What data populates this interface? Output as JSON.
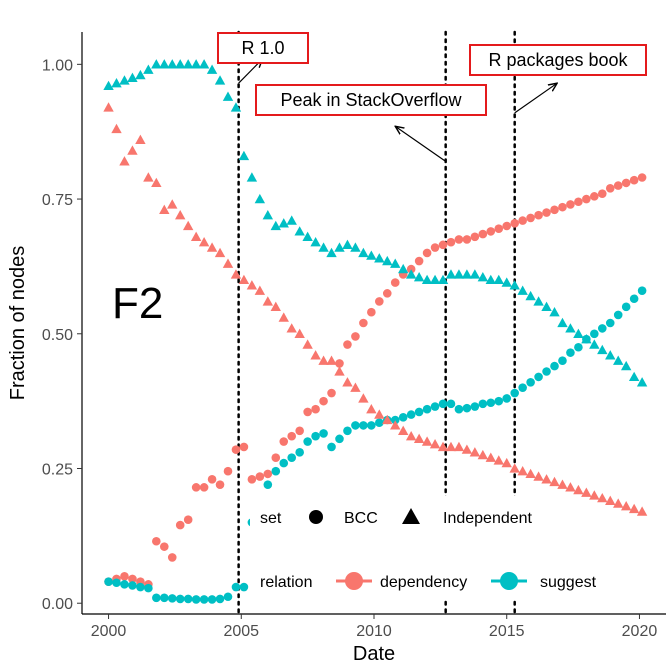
{
  "chart_data": {
    "type": "scatter",
    "panel_tag": "F2",
    "xlabel": "Date",
    "ylabel": "Fraction of nodes",
    "xlim": [
      1999,
      2021
    ],
    "ylim": [
      -0.02,
      1.06
    ],
    "x_ticks": [
      2000,
      2005,
      2010,
      2015,
      2020
    ],
    "x_tick_labels": [
      "2000",
      "2005",
      "2010",
      "2015",
      "2020"
    ],
    "y_ticks": [
      0,
      0.25,
      0.5,
      0.75,
      1.0
    ],
    "y_tick_labels": [
      "0.00",
      "0.25",
      "0.50",
      "0.75",
      "1.00"
    ],
    "grid": false,
    "colors": {
      "dependency": "#f8766d",
      "suggest": "#00bfc4",
      "annotation_box": "#e41a1c"
    },
    "legend": {
      "set_title": "set",
      "set_items": [
        {
          "label": "BCC",
          "shape": "circle"
        },
        {
          "label": "Independent",
          "shape": "triangle"
        }
      ],
      "relation_title": "relation",
      "relation_items": [
        {
          "label": "dependency",
          "color": "#f8766d"
        },
        {
          "label": "suggest",
          "color": "#00bfc4"
        }
      ],
      "placement": "bottom-center inside"
    },
    "vlines": [
      2004.9,
      2012.7,
      2015.3
    ],
    "annotations": [
      {
        "text": "R 1.0",
        "arrow_from": [
          2004.9,
          0.965
        ],
        "arrow_to": [
          2005.8,
          1.01
        ]
      },
      {
        "text": "Peak in StackOverflow",
        "arrow_from": [
          2012.7,
          0.82
        ],
        "arrow_to": [
          2010.8,
          0.885
        ]
      },
      {
        "text": "R packages book",
        "arrow_from": [
          2015.3,
          0.91
        ],
        "arrow_to": [
          2016.9,
          0.965
        ]
      }
    ],
    "series": [
      {
        "name": "BCC dependency",
        "set": "BCC",
        "relation": "dependency",
        "shape": "circle",
        "x": [
          2000.0,
          2000.3,
          2000.6,
          2000.9,
          2001.2,
          2001.5,
          2001.8,
          2002.1,
          2002.4,
          2002.7,
          2003.0,
          2003.3,
          2003.6,
          2003.9,
          2004.2,
          2004.5,
          2004.8,
          2005.1,
          2005.4,
          2005.7,
          2006.0,
          2006.3,
          2006.6,
          2006.9,
          2007.2,
          2007.5,
          2007.8,
          2008.1,
          2008.4,
          2008.7,
          2009.0,
          2009.3,
          2009.6,
          2009.9,
          2010.2,
          2010.5,
          2010.8,
          2011.1,
          2011.4,
          2011.7,
          2012.0,
          2012.3,
          2012.6,
          2012.9,
          2013.2,
          2013.5,
          2013.8,
          2014.1,
          2014.4,
          2014.7,
          2015.0,
          2015.3,
          2015.6,
          2015.9,
          2016.2,
          2016.5,
          2016.8,
          2017.1,
          2017.4,
          2017.7,
          2018.0,
          2018.3,
          2018.6,
          2018.9,
          2019.2,
          2019.5,
          2019.8,
          2020.1
        ],
        "y": [
          0.04,
          0.045,
          0.05,
          0.045,
          0.04,
          0.035,
          0.115,
          0.105,
          0.085,
          0.145,
          0.155,
          0.215,
          0.215,
          0.23,
          0.22,
          0.245,
          0.285,
          0.29,
          0.23,
          0.235,
          0.24,
          0.27,
          0.3,
          0.31,
          0.32,
          0.355,
          0.36,
          0.375,
          0.39,
          0.445,
          0.48,
          0.495,
          0.52,
          0.54,
          0.56,
          0.575,
          0.595,
          0.61,
          0.62,
          0.635,
          0.65,
          0.66,
          0.665,
          0.67,
          0.675,
          0.675,
          0.68,
          0.685,
          0.69,
          0.695,
          0.7,
          0.705,
          0.71,
          0.715,
          0.72,
          0.725,
          0.73,
          0.735,
          0.74,
          0.745,
          0.75,
          0.755,
          0.76,
          0.77,
          0.775,
          0.78,
          0.785,
          0.79
        ]
      },
      {
        "name": "BCC suggest",
        "set": "BCC",
        "relation": "suggest",
        "shape": "circle",
        "x": [
          2000.0,
          2000.3,
          2000.6,
          2000.9,
          2001.2,
          2001.5,
          2001.8,
          2002.1,
          2002.4,
          2002.7,
          2003.0,
          2003.3,
          2003.6,
          2003.9,
          2004.2,
          2004.5,
          2004.8,
          2005.1,
          2005.4,
          2005.7,
          2006.0,
          2006.3,
          2006.6,
          2006.9,
          2007.2,
          2007.5,
          2007.8,
          2008.1,
          2008.4,
          2008.7,
          2009.0,
          2009.3,
          2009.6,
          2009.9,
          2010.2,
          2010.5,
          2010.8,
          2011.1,
          2011.4,
          2011.7,
          2012.0,
          2012.3,
          2012.6,
          2012.9,
          2013.2,
          2013.5,
          2013.8,
          2014.1,
          2014.4,
          2014.7,
          2015.0,
          2015.3,
          2015.6,
          2015.9,
          2016.2,
          2016.5,
          2016.8,
          2017.1,
          2017.4,
          2017.7,
          2018.0,
          2018.3,
          2018.6,
          2018.9,
          2019.2,
          2019.5,
          2019.8,
          2020.1
        ],
        "y": [
          0.04,
          0.038,
          0.035,
          0.033,
          0.03,
          0.028,
          0.01,
          0.01,
          0.009,
          0.008,
          0.008,
          0.007,
          0.007,
          0.007,
          0.008,
          0.012,
          0.03,
          0.03,
          0.15,
          0.185,
          0.22,
          0.245,
          0.26,
          0.27,
          0.28,
          0.3,
          0.31,
          0.315,
          0.29,
          0.305,
          0.32,
          0.33,
          0.33,
          0.33,
          0.335,
          0.34,
          0.34,
          0.345,
          0.35,
          0.355,
          0.36,
          0.365,
          0.37,
          0.37,
          0.36,
          0.362,
          0.365,
          0.37,
          0.372,
          0.375,
          0.38,
          0.39,
          0.4,
          0.41,
          0.42,
          0.43,
          0.44,
          0.45,
          0.465,
          0.475,
          0.49,
          0.5,
          0.51,
          0.52,
          0.535,
          0.55,
          0.565,
          0.58
        ]
      },
      {
        "name": "Independent dependency",
        "set": "Independent",
        "relation": "dependency",
        "shape": "triangle",
        "x": [
          2000.0,
          2000.3,
          2000.6,
          2000.9,
          2001.2,
          2001.5,
          2001.8,
          2002.1,
          2002.4,
          2002.7,
          2003.0,
          2003.3,
          2003.6,
          2003.9,
          2004.2,
          2004.5,
          2004.8,
          2005.1,
          2005.4,
          2005.7,
          2006.0,
          2006.3,
          2006.6,
          2006.9,
          2007.2,
          2007.5,
          2007.8,
          2008.1,
          2008.4,
          2008.7,
          2009.0,
          2009.3,
          2009.6,
          2009.9,
          2010.2,
          2010.5,
          2010.8,
          2011.1,
          2011.4,
          2011.7,
          2012.0,
          2012.3,
          2012.6,
          2012.9,
          2013.2,
          2013.5,
          2013.8,
          2014.1,
          2014.4,
          2014.7,
          2015.0,
          2015.3,
          2015.6,
          2015.9,
          2016.2,
          2016.5,
          2016.8,
          2017.1,
          2017.4,
          2017.7,
          2018.0,
          2018.3,
          2018.6,
          2018.9,
          2019.2,
          2019.5,
          2019.8,
          2020.1
        ],
        "y": [
          0.92,
          0.88,
          0.82,
          0.84,
          0.86,
          0.79,
          0.78,
          0.73,
          0.74,
          0.72,
          0.7,
          0.68,
          0.67,
          0.66,
          0.65,
          0.63,
          0.61,
          0.6,
          0.59,
          0.58,
          0.56,
          0.55,
          0.53,
          0.51,
          0.5,
          0.48,
          0.46,
          0.45,
          0.45,
          0.43,
          0.41,
          0.4,
          0.38,
          0.36,
          0.35,
          0.34,
          0.33,
          0.32,
          0.31,
          0.305,
          0.3,
          0.295,
          0.29,
          0.29,
          0.29,
          0.285,
          0.28,
          0.275,
          0.27,
          0.265,
          0.26,
          0.25,
          0.245,
          0.24,
          0.235,
          0.23,
          0.225,
          0.22,
          0.215,
          0.21,
          0.205,
          0.2,
          0.195,
          0.19,
          0.185,
          0.18,
          0.175,
          0.17
        ]
      },
      {
        "name": "Independent suggest",
        "set": "Independent",
        "relation": "suggest",
        "shape": "triangle",
        "x": [
          2000.0,
          2000.3,
          2000.6,
          2000.9,
          2001.2,
          2001.5,
          2001.8,
          2002.1,
          2002.4,
          2002.7,
          2003.0,
          2003.3,
          2003.6,
          2003.9,
          2004.2,
          2004.5,
          2004.8,
          2005.1,
          2005.4,
          2005.7,
          2006.0,
          2006.3,
          2006.6,
          2006.9,
          2007.2,
          2007.5,
          2007.8,
          2008.1,
          2008.4,
          2008.7,
          2009.0,
          2009.3,
          2009.6,
          2009.9,
          2010.2,
          2010.5,
          2010.8,
          2011.1,
          2011.4,
          2011.7,
          2012.0,
          2012.3,
          2012.6,
          2012.9,
          2013.2,
          2013.5,
          2013.8,
          2014.1,
          2014.4,
          2014.7,
          2015.0,
          2015.3,
          2015.6,
          2015.9,
          2016.2,
          2016.5,
          2016.8,
          2017.1,
          2017.4,
          2017.7,
          2018.0,
          2018.3,
          2018.6,
          2018.9,
          2019.2,
          2019.5,
          2019.8,
          2020.1
        ],
        "y": [
          0.96,
          0.965,
          0.97,
          0.975,
          0.98,
          0.99,
          1.0,
          1.0,
          1.0,
          1.0,
          1.0,
          1.0,
          1.0,
          0.99,
          0.97,
          0.94,
          0.92,
          0.83,
          0.79,
          0.75,
          0.72,
          0.7,
          0.705,
          0.71,
          0.69,
          0.68,
          0.67,
          0.66,
          0.65,
          0.66,
          0.665,
          0.66,
          0.65,
          0.645,
          0.64,
          0.635,
          0.63,
          0.62,
          0.61,
          0.605,
          0.6,
          0.6,
          0.6,
          0.61,
          0.61,
          0.61,
          0.61,
          0.605,
          0.6,
          0.6,
          0.595,
          0.59,
          0.58,
          0.57,
          0.56,
          0.55,
          0.54,
          0.52,
          0.51,
          0.5,
          0.49,
          0.48,
          0.47,
          0.46,
          0.45,
          0.44,
          0.42,
          0.41
        ]
      }
    ]
  }
}
